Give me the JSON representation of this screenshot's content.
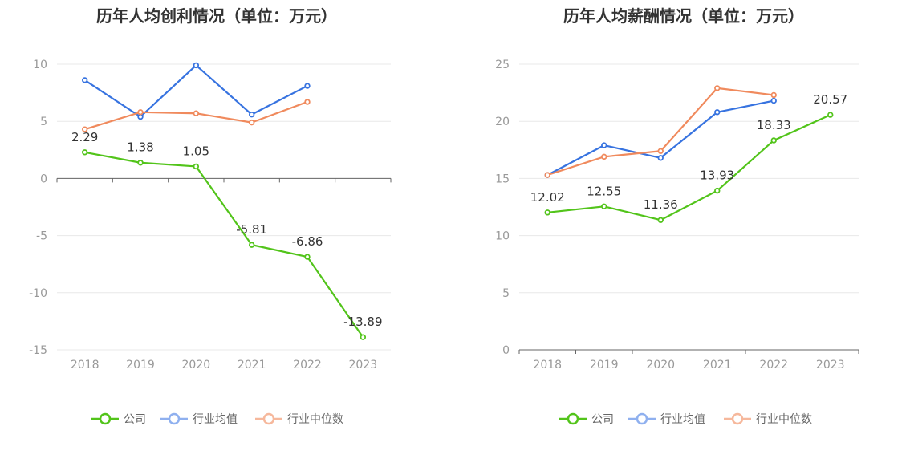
{
  "colors": {
    "company": "#52c41a",
    "industry_avg": "#3773e0",
    "industry_median": "#f08a5d",
    "legend_company": "#52c41a",
    "legend_avg": "#8fb0ef",
    "legend_median": "#f6b89c",
    "axis_text": "#999999",
    "title_text": "#333333",
    "label_text": "#333333",
    "grid": "#e8e8e8",
    "axis_line": "#666666"
  },
  "chart_data": [
    {
      "type": "line",
      "title": "历年人均创利情况（单位：万元）",
      "categories": [
        "2018",
        "2019",
        "2020",
        "2021",
        "2022",
        "2023"
      ],
      "ylim": [
        -15,
        10
      ],
      "yticks": [
        10,
        5,
        0,
        -5,
        -10,
        -15
      ],
      "grid": true,
      "legend_position": "bottom-center",
      "series": [
        {
          "name": "公司",
          "key": "company",
          "values": [
            2.29,
            1.38,
            1.05,
            -5.81,
            -6.86,
            -13.89
          ],
          "labels": [
            "2.29",
            "1.38",
            "1.05",
            "-5.81",
            "-6.86",
            "-13.89"
          ]
        },
        {
          "name": "行业均值",
          "key": "industry_avg",
          "values": [
            8.6,
            5.4,
            9.9,
            5.6,
            8.1,
            null
          ]
        },
        {
          "name": "行业中位数",
          "key": "industry_median",
          "values": [
            4.3,
            5.8,
            5.7,
            4.9,
            6.7,
            null
          ]
        }
      ]
    },
    {
      "type": "line",
      "title": "历年人均薪酬情况（单位：万元）",
      "categories": [
        "2018",
        "2019",
        "2020",
        "2021",
        "2022",
        "2023"
      ],
      "ylim": [
        0,
        25
      ],
      "yticks": [
        25,
        20,
        15,
        10,
        5,
        0
      ],
      "grid": true,
      "legend_position": "bottom-center",
      "series": [
        {
          "name": "公司",
          "key": "company",
          "values": [
            12.02,
            12.55,
            11.36,
            13.93,
            18.33,
            20.57
          ],
          "labels": [
            "12.02",
            "12.55",
            "11.36",
            "13.93",
            "18.33",
            "20.57"
          ]
        },
        {
          "name": "行业均值",
          "key": "industry_avg",
          "values": [
            15.3,
            17.9,
            16.8,
            20.8,
            21.8,
            null
          ]
        },
        {
          "name": "行业中位数",
          "key": "industry_median",
          "values": [
            15.3,
            16.9,
            17.4,
            22.9,
            22.3,
            null
          ]
        }
      ]
    }
  ]
}
